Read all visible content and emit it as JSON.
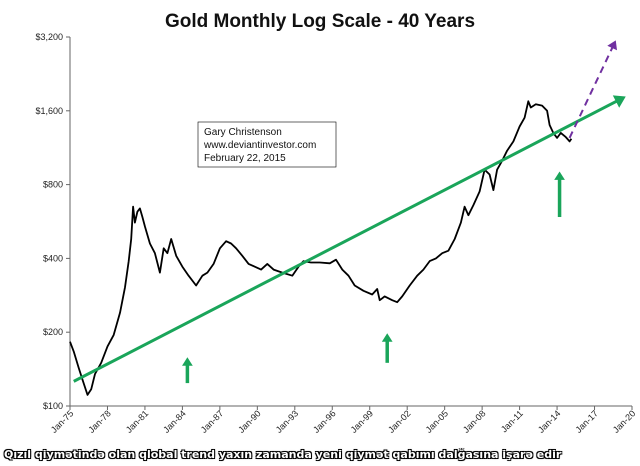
{
  "chart_data": {
    "type": "line",
    "title": "Gold Monthly Log Scale - 40 Years",
    "y_scale": "log",
    "ylim": [
      100,
      3200
    ],
    "y_ticks": [
      {
        "value": 100,
        "label": "$100"
      },
      {
        "value": 200,
        "label": "$200"
      },
      {
        "value": 400,
        "label": "$400"
      },
      {
        "value": 800,
        "label": "$800"
      },
      {
        "value": 1600,
        "label": "$1,600"
      },
      {
        "value": 3200,
        "label": "$3,200"
      }
    ],
    "xlim": [
      1975.0,
      2020.0
    ],
    "x_ticks": [
      {
        "value": 1975,
        "label": "Jan-75"
      },
      {
        "value": 1978,
        "label": "Jan-78"
      },
      {
        "value": 1981,
        "label": "Jan-81"
      },
      {
        "value": 1984,
        "label": "Jan-84"
      },
      {
        "value": 1987,
        "label": "Jan-87"
      },
      {
        "value": 1990,
        "label": "Jan-90"
      },
      {
        "value": 1993,
        "label": "Jan-93"
      },
      {
        "value": 1996,
        "label": "Jan-96"
      },
      {
        "value": 1999,
        "label": "Jan-99"
      },
      {
        "value": 2002,
        "label": "Jan-02"
      },
      {
        "value": 2005,
        "label": "Jan-05"
      },
      {
        "value": 2008,
        "label": "Jan-08"
      },
      {
        "value": 2011,
        "label": "Jan-11"
      },
      {
        "value": 2014,
        "label": "Jan-14"
      },
      {
        "value": 2017,
        "label": "Jan-17"
      },
      {
        "value": 2020,
        "label": "Jan-20"
      }
    ],
    "grid": false,
    "series": [
      {
        "color": "#000000",
        "x": [
          1975.0,
          1975.3,
          1975.7,
          1976.0,
          1976.4,
          1976.7,
          1977.0,
          1977.5,
          1978.0,
          1978.5,
          1979.0,
          1979.4,
          1979.7,
          1979.9,
          1980.05,
          1980.2,
          1980.4,
          1980.6,
          1980.8,
          1981.0,
          1981.4,
          1981.8,
          1982.2,
          1982.5,
          1982.8,
          1983.1,
          1983.5,
          1984.0,
          1984.5,
          1985.1,
          1985.6,
          1986.0,
          1986.5,
          1987.0,
          1987.5,
          1987.9,
          1988.3,
          1988.8,
          1989.3,
          1989.8,
          1990.3,
          1990.8,
          1991.3,
          1992.0,
          1992.8,
          1993.3,
          1993.7,
          1994.3,
          1995.0,
          1995.8,
          1996.3,
          1996.8,
          1997.3,
          1997.8,
          1998.5,
          1999.2,
          1999.6,
          1999.8,
          2000.2,
          2000.8,
          2001.2,
          2001.6,
          2002.2,
          2002.8,
          2003.3,
          2003.8,
          2004.3,
          2004.8,
          2005.3,
          2005.8,
          2006.3,
          2006.6,
          2006.9,
          2007.3,
          2007.8,
          2008.2,
          2008.6,
          2008.9,
          2009.2,
          2009.6,
          2010.0,
          2010.5,
          2011.0,
          2011.4,
          2011.7,
          2011.9,
          2012.3,
          2012.8,
          2013.2,
          2013.4,
          2013.7,
          2014.0,
          2014.3,
          2014.7,
          2015.0,
          2015.15
        ],
        "values": [
          183,
          167,
          143,
          128,
          111,
          117,
          135,
          150,
          175,
          195,
          240,
          305,
          390,
          480,
          650,
          560,
          620,
          640,
          590,
          540,
          460,
          420,
          350,
          440,
          420,
          480,
          410,
          370,
          340,
          310,
          340,
          350,
          380,
          440,
          470,
          460,
          440,
          410,
          380,
          370,
          360,
          380,
          360,
          350,
          340,
          370,
          390,
          385,
          385,
          382,
          395,
          360,
          340,
          310,
          295,
          285,
          300,
          270,
          280,
          270,
          265,
          280,
          310,
          340,
          360,
          390,
          400,
          420,
          430,
          480,
          560,
          650,
          600,
          660,
          750,
          920,
          880,
          760,
          920,
          1000,
          1100,
          1200,
          1380,
          1500,
          1750,
          1650,
          1700,
          1680,
          1600,
          1400,
          1300,
          1240,
          1300,
          1250,
          1200,
          1230
        ]
      }
    ],
    "trendlines": [
      {
        "color": "#1aa55a",
        "style": "solid",
        "x": [
          1975.3,
          2019.5
        ],
        "values": [
          126,
          1830
        ]
      },
      {
        "color": "#7030a0",
        "style": "dashed",
        "x": [
          2015.0,
          2018.7
        ],
        "values": [
          1240,
          3100
        ]
      }
    ],
    "arrows": [
      {
        "color": "#1aa55a",
        "x": 1984.4,
        "from": 124,
        "to": 158
      },
      {
        "color": "#1aa55a",
        "x": 2000.4,
        "from": 150,
        "to": 198
      },
      {
        "color": "#1aa55a",
        "x": 2014.2,
        "from": 590,
        "to": 905
      }
    ],
    "annotation": {
      "lines": [
        "Gary Christenson",
        "www.deviantinvestor.com",
        "February 22, 2015"
      ]
    }
  },
  "caption": "Qızıl qiymətində olan qlobal trend yaxın zamanda yeni qiymət qabımı dalğasına işarə edir",
  "colors": {
    "axis": "#666666",
    "price_line": "#000000",
    "trend": "#1aa55a",
    "projection": "#7030a0"
  }
}
